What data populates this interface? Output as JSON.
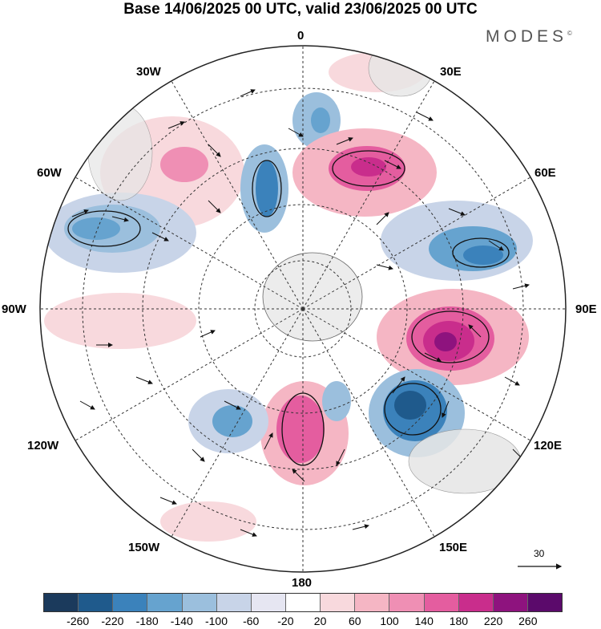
{
  "header": {
    "title": "Base 14/06/2025 00 UTC, valid 23/06/2025 00 UTC",
    "brand": "MODES",
    "brand_mark": "©"
  },
  "map": {
    "projection": "south-polar-stereographic",
    "longitude_labels": {
      "lon_0": "0",
      "lon_30e": "30E",
      "lon_60e": "60E",
      "lon_90e": "90E",
      "lon_120e": "120E",
      "lon_150e": "150E",
      "lon_180": "180",
      "lon_150w": "150W",
      "lon_120w": "120W",
      "lon_90w": "90W",
      "lon_60w": "60W",
      "lon_30w": "30W"
    },
    "reference_vector": {
      "label": "30"
    }
  },
  "colorbar": {
    "colors": [
      "#1b3a5c",
      "#1f5a8c",
      "#3b82bb",
      "#66a3cf",
      "#9bbfdd",
      "#c8d4e8",
      "#e6e6f2",
      "#ffffff",
      "#f8d9dd",
      "#f5b6c4",
      "#ef8fb4",
      "#e45d9f",
      "#c92d8c",
      "#8e137e",
      "#5b0a6b"
    ],
    "tick_labels": [
      "-260",
      "-220",
      "-180",
      "-140",
      "-100",
      "-60",
      "-20",
      "20",
      "60",
      "100",
      "140",
      "180",
      "220",
      "260"
    ]
  }
}
